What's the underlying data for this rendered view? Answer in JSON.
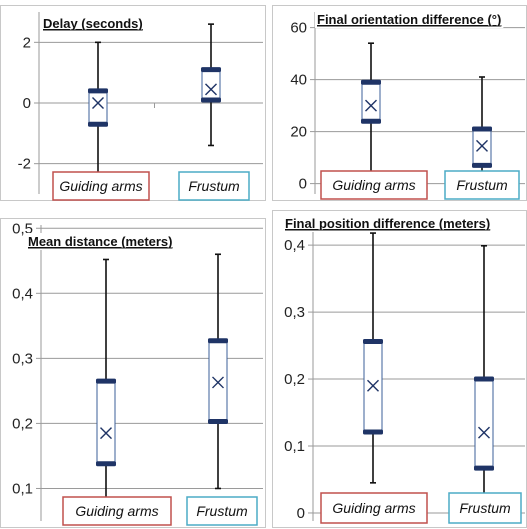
{
  "colors": {
    "box_edge": "#3b5f9a",
    "median_bar": "#1f3466",
    "whisker": "#111111",
    "grid": "#9a9a9a",
    "guiding_arms_border": "#c0504d",
    "frustum_border": "#4bacc6"
  },
  "chart_data": [
    {
      "type": "box",
      "title": "Delay (seconds)",
      "categories": [
        "Guiding arms",
        "Frustum"
      ],
      "ylim": [
        -3,
        3
      ],
      "yticks": [
        -2,
        0,
        2
      ],
      "ytick_labels": [
        "-2",
        "0",
        "2"
      ],
      "grid": "horizontal",
      "series": [
        {
          "min": -2.35,
          "q1": -0.7,
          "q3": 0.4,
          "max": 2.0,
          "mean": 0.0
        },
        {
          "min": -1.4,
          "q1": 0.1,
          "q3": 1.1,
          "max": 2.6,
          "mean": 0.45
        }
      ]
    },
    {
      "type": "box",
      "title": "Final orientation difference (°)",
      "categories": [
        "Guiding arms",
        "Frustum"
      ],
      "ylim": [
        -4,
        66
      ],
      "yticks": [
        0,
        20,
        40,
        60
      ],
      "ytick_labels": [
        "0",
        "20",
        "40",
        "60"
      ],
      "grid": "horizontal",
      "series": [
        {
          "min": 3,
          "q1": 24,
          "q3": 39,
          "max": 54,
          "mean": 30
        },
        {
          "min": 3,
          "q1": 7,
          "q3": 21,
          "max": 41,
          "mean": 14.5
        }
      ]
    },
    {
      "type": "box",
      "title": "Mean distance (meters)",
      "categories": [
        "Guiding arms",
        "Frustum"
      ],
      "ylim": [
        0.05,
        0.505
      ],
      "yticks": [
        0.1,
        0.2,
        0.3,
        0.4,
        0.5
      ],
      "ytick_labels": [
        "0,1",
        "0,2",
        "0,3",
        "0,4",
        "0,5"
      ],
      "grid": "horizontal",
      "series": [
        {
          "min": 0.083,
          "q1": 0.138,
          "q3": 0.265,
          "max": 0.452,
          "mean": 0.185
        },
        {
          "min": 0.1,
          "q1": 0.203,
          "q3": 0.327,
          "max": 0.46,
          "mean": 0.263
        }
      ]
    },
    {
      "type": "box",
      "title": "Final position difference (meters)",
      "categories": [
        "Guiding arms",
        "Frustum"
      ],
      "ylim": [
        -0.012,
        0.442
      ],
      "yticks": [
        0,
        0.1,
        0.2,
        0.3,
        0.4
      ],
      "ytick_labels": [
        "0",
        "0,1",
        "0,2",
        "0,3",
        "0,4"
      ],
      "grid": "horizontal",
      "series": [
        {
          "min": 0.045,
          "q1": 0.121,
          "q3": 0.256,
          "max": 0.418,
          "mean": 0.19
        },
        {
          "min": 0.02,
          "q1": 0.067,
          "q3": 0.2,
          "max": 0.399,
          "mean": 0.12
        }
      ]
    }
  ]
}
